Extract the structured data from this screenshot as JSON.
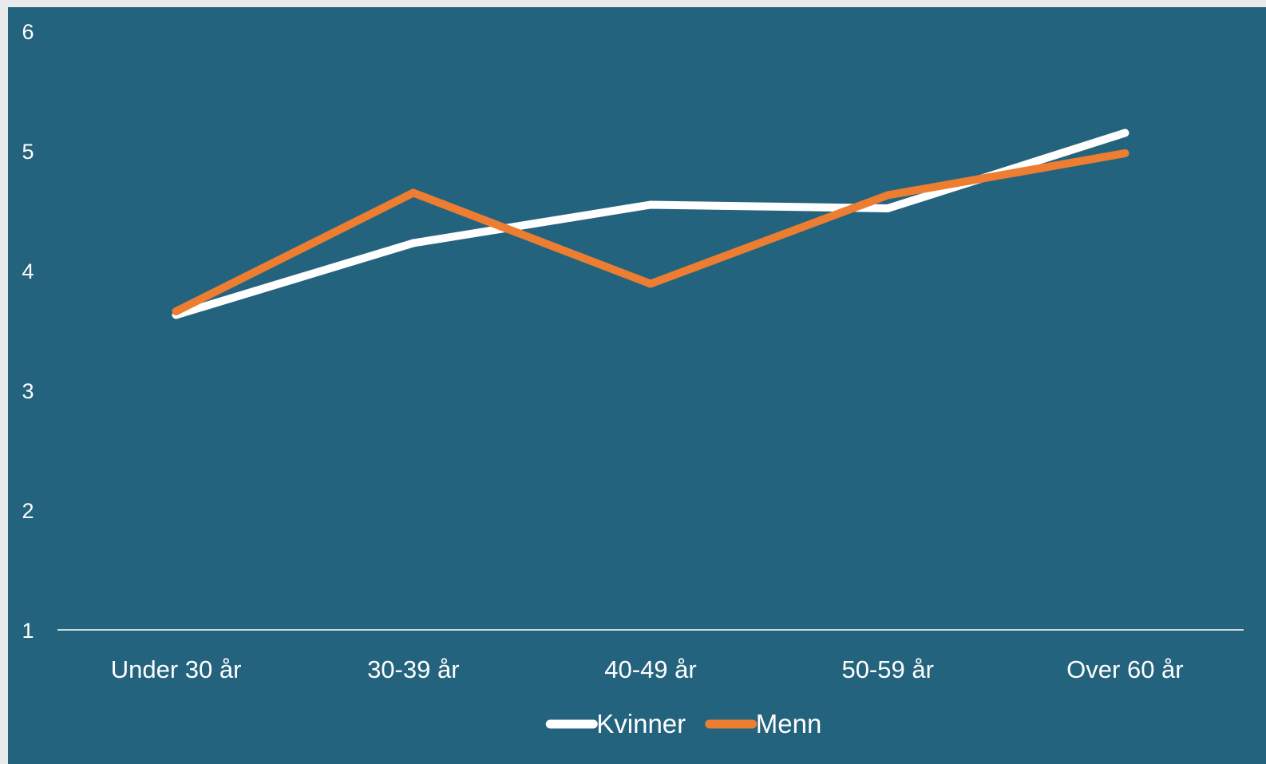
{
  "chart_data": {
    "type": "line",
    "title": "",
    "xlabel": "",
    "ylabel": "",
    "categories": [
      "Under 30 år",
      "30-39 år",
      "40-49 år",
      "50-59 år",
      "Over 60 år"
    ],
    "ylim": [
      1,
      6
    ],
    "yticks": [
      "1",
      "2",
      "3",
      "4",
      "5",
      "6"
    ],
    "grid": false,
    "legend_position": "bottom",
    "series": [
      {
        "name": "Kvinner",
        "color": "#ffffff",
        "values": [
          3.63,
          4.23,
          4.55,
          4.52,
          5.15
        ]
      },
      {
        "name": "Menn",
        "color": "#ed7d31",
        "values": [
          3.66,
          4.65,
          3.89,
          4.63,
          4.98
        ]
      }
    ],
    "colors": {
      "background": "#24637e",
      "axis_line": "#ffffff",
      "text": "#ffffff"
    }
  }
}
